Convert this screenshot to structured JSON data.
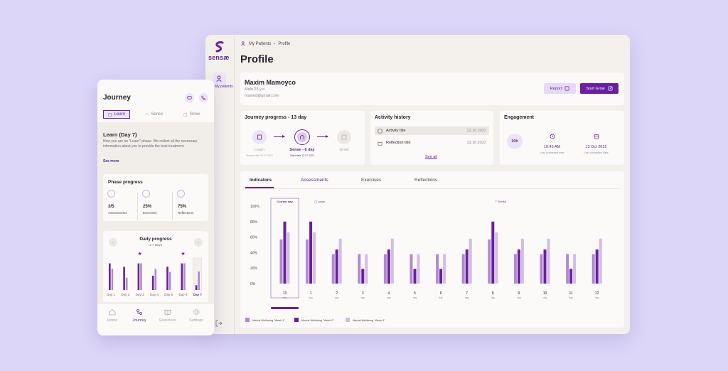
{
  "desktop": {
    "brand": "sensæ",
    "sidebar_label": "My patients",
    "breadcrumb": [
      "My Patients",
      "Profile"
    ],
    "title": "Profile",
    "patient": {
      "name": "Maxim Mamoyco",
      "details": "Male 23 y.o",
      "email": "maxied@gmail.com",
      "report_label": "Report",
      "start_label": "Start Grow"
    },
    "journey": {
      "title": "Journey progress - 13 day",
      "steps": [
        {
          "label": "Learn",
          "date": "Started date 13.07.2022"
        },
        {
          "label": "Sense - 6 day",
          "date": "Start date 13.07.2022"
        },
        {
          "label": "Grow",
          "date": ""
        }
      ]
    },
    "activity": {
      "title": "Activity history",
      "items": [
        {
          "label": "Activity title",
          "date": "12.10.2022"
        },
        {
          "label": "Reflection title",
          "date": "13.10.2022"
        }
      ],
      "see_all": "See all"
    },
    "engagement": {
      "title": "Engagement",
      "badge": "10h",
      "stats": [
        {
          "value": "10:45 AM",
          "label": "Last connected time"
        },
        {
          "value": "13 Oct 2022",
          "label": "Last connected date"
        }
      ]
    },
    "tabs": [
      "Indicators",
      "Assessments",
      "Exercises",
      "Reflections"
    ],
    "chart_data": {
      "type": "bar",
      "categories": [
        "13",
        "1",
        "2",
        "3",
        "4",
        "5",
        "6",
        "7",
        "8",
        "9",
        "10",
        "11",
        "12"
      ],
      "category_sublabel": "day",
      "highlight_label": "Current day",
      "phase_labels": [
        "Learn",
        "Sense"
      ],
      "ylabels": [
        "100%",
        "80%",
        "60%",
        "40%",
        "20%",
        "0%"
      ],
      "ylim": [
        0,
        100
      ],
      "series": [
        {
          "name": "Mental Wellbeing \"Week 1\"",
          "color": "#b089cf",
          "values": [
            57,
            57,
            38,
            38,
            38,
            38,
            38,
            38,
            57,
            38,
            38,
            38,
            38
          ]
        },
        {
          "name": "Mental Wellbeing \"Week 2\"",
          "color": "#6a1fa0",
          "values": [
            80,
            80,
            44,
            19,
            44,
            19,
            19,
            44,
            80,
            44,
            44,
            19,
            44
          ]
        },
        {
          "name": "Mental Wellbeing \"Week 3\"",
          "color": "#d2bce8",
          "values": [
            66,
            66,
            58,
            38,
            58,
            38,
            38,
            58,
            66,
            58,
            58,
            38,
            58
          ]
        }
      ]
    }
  },
  "phone": {
    "title": "Journey",
    "tabs": [
      "Learn",
      "Sense",
      "Grow"
    ],
    "heading": "Learn (Day 7)",
    "text": "Now you are on \"Learn\" phase. We collect all the necessary information about you to provide the best treatment.",
    "see_more": "See more",
    "phase": {
      "title": "Phase progress",
      "items": [
        {
          "value": "3/5",
          "label": "Assessments"
        },
        {
          "value": "25%",
          "label": "Exercises"
        },
        {
          "value": "75%",
          "label": "Reflections"
        }
      ]
    },
    "daily": {
      "title": "Daily progress",
      "subtitle": "1-7 Days",
      "chart_data": {
        "type": "bar",
        "categories": [
          "Day 1",
          "Day 2",
          "Day 3",
          "Day 4",
          "Day 5",
          "Day 6",
          "Day 7"
        ],
        "starred": [
          false,
          false,
          true,
          false,
          false,
          true,
          false
        ],
        "series": [
          {
            "color": "#6a1fa0",
            "values": [
              78,
              68,
              78,
              42,
              68,
              78,
              14
            ]
          },
          {
            "color": "#b089cf",
            "values": [
              62,
              36,
              78,
              62,
              52,
              78,
              54
            ]
          }
        ]
      }
    },
    "nav": [
      "Home",
      "Journey",
      "Exercises",
      "Settings"
    ]
  }
}
